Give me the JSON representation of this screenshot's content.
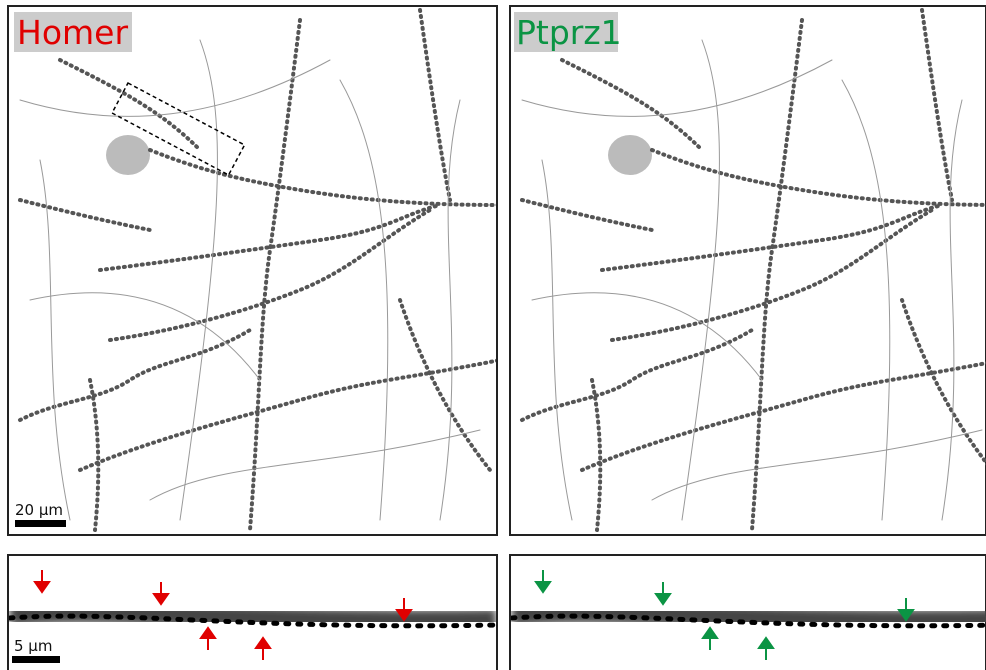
{
  "top_panels": [
    {
      "label": "Homer",
      "scale_bar": "20 µm"
    },
    {
      "label": "Ptprz1"
    }
  ],
  "inset_scale_bar": "5 µm"
}
